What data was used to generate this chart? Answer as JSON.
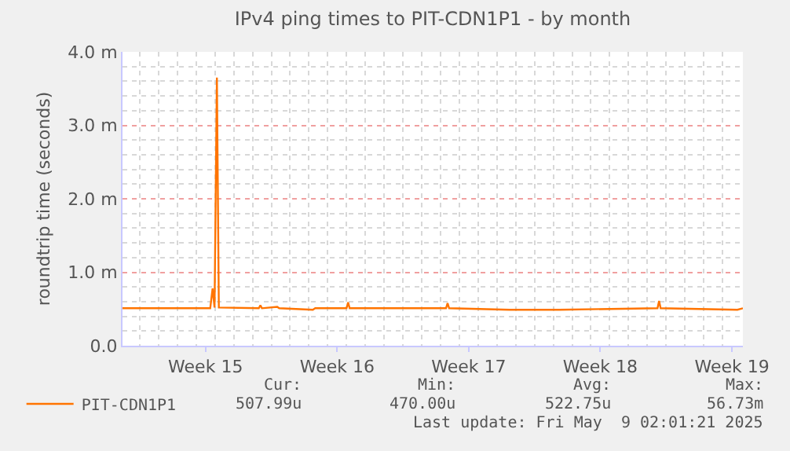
{
  "chart_data": {
    "type": "line",
    "title": "IPv4 ping times to PIT-CDN1P1 - by month",
    "ylabel": "roundtrip time (seconds)",
    "x": [
      "2025-04-06T02:00",
      "2025-04-10T18:00",
      "2025-04-10T21:00",
      "2025-04-10T23:30",
      "2025-04-11T02:30",
      "2025-04-11T05:00",
      "2025-04-13T08:00",
      "2025-04-13T10:00",
      "2025-04-13T12:00",
      "2025-04-14T07:30",
      "2025-04-14T10:00",
      "2025-04-16T05:00",
      "2025-04-16T08:00",
      "2025-04-18T00:00",
      "2025-04-18T02:00",
      "2025-04-18T04:00",
      "2025-04-23T07:00",
      "2025-04-23T09:00",
      "2025-04-23T11:00",
      "2025-04-26T16:00",
      "2025-04-29T07:30",
      "2025-05-04T13:00",
      "2025-05-04T15:00",
      "2025-05-04T17:00",
      "2025-05-08T19:00",
      "2025-05-09T02:00"
    ],
    "series": [
      {
        "name": "PIT-CDN1P1",
        "color": "#ff7400",
        "values": [
          0.51,
          0.51,
          0.78,
          0.52,
          3.65,
          0.52,
          0.51,
          0.55,
          0.51,
          0.53,
          0.51,
          0.49,
          0.51,
          0.51,
          0.59,
          0.51,
          0.51,
          0.58,
          0.51,
          0.49,
          0.49,
          0.51,
          0.61,
          0.51,
          0.49,
          0.51
        ]
      }
    ],
    "xlim": [
      "2025-04-06T02:00",
      "2025-05-09T02:00"
    ],
    "xticks": [
      {
        "value": "2025-04-10T12:00",
        "label": "Week 15"
      },
      {
        "value": "2025-04-17T12:00",
        "label": "Week 16"
      },
      {
        "value": "2025-04-24T12:00",
        "label": "Week 17"
      },
      {
        "value": "2025-05-01T12:00",
        "label": "Week 18"
      },
      {
        "value": "2025-05-08T12:00",
        "label": "Week 19"
      }
    ],
    "ylim": [
      0,
      4
    ],
    "yticks": [
      {
        "value": 0,
        "label": "0.0"
      },
      {
        "value": 1,
        "label": "1.0 m"
      },
      {
        "value": 2,
        "label": "2.0 m"
      },
      {
        "value": 3,
        "label": "3.0 m"
      },
      {
        "value": 4,
        "label": "4.0 m"
      }
    ],
    "grid": true,
    "legend": "bottom left",
    "marker": "none",
    "line_style": "solid",
    "annotations": [
      "Cur:",
      "507.99u",
      "Min:",
      "470.00u",
      "Avg:",
      "522.75u",
      "Max:",
      "56.73m",
      "Last update: Fri May  9 02:01:21 2025"
    ]
  }
}
